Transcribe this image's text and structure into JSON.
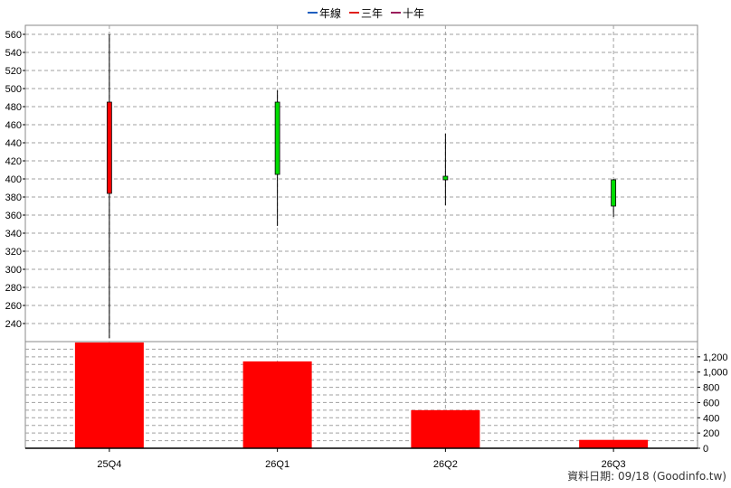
{
  "legend": [
    {
      "label": "年線",
      "color": "#1f5fbf"
    },
    {
      "label": "三年",
      "color": "#e0201c"
    },
    {
      "label": "十年",
      "color": "#9b1d5c"
    }
  ],
  "footer": "資料日期: 09/18  (Goodinfo.tw)",
  "chart_data": {
    "type": "candlestick",
    "categories": [
      "25Q4",
      "26Q1",
      "26Q2",
      "26Q3"
    ],
    "price": {
      "ylim": [
        220,
        570
      ],
      "ticks": [
        240,
        260,
        280,
        300,
        320,
        340,
        360,
        380,
        400,
        420,
        440,
        460,
        480,
        500,
        520,
        540,
        560
      ],
      "candles": [
        {
          "open": 384,
          "close": 485,
          "high": 560,
          "low": 224,
          "color": "#ff0000"
        },
        {
          "open": 485,
          "close": 405,
          "high": 498,
          "low": 348,
          "color": "#00dd00"
        },
        {
          "open": 403,
          "close": 399,
          "high": 450,
          "low": 371,
          "color": "#00dd00"
        },
        {
          "open": 399,
          "close": 370,
          "high": 400,
          "low": 358,
          "color": "#00dd00"
        }
      ]
    },
    "volume": {
      "ylim": [
        0,
        1400
      ],
      "ticks": [
        0,
        200,
        400,
        600,
        800,
        1000,
        1200
      ],
      "tick_labels": [
        "0",
        "200",
        "400",
        "600",
        "800",
        "1,000",
        "1,200"
      ],
      "values": [
        1420,
        1140,
        500,
        110
      ],
      "color": "#ff0000"
    },
    "grid": true
  }
}
